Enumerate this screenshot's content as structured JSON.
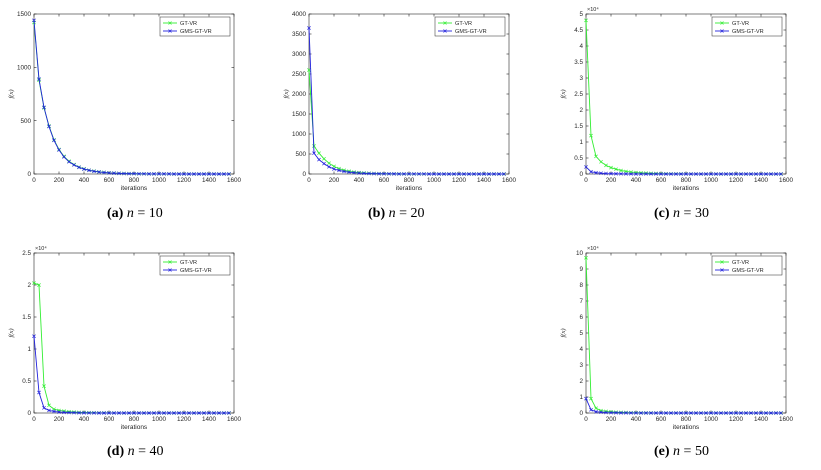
{
  "figure": {
    "captions": [
      {
        "tag": "(a)",
        "var": "n",
        "eq": "=",
        "val": "10"
      },
      {
        "tag": "(b)",
        "var": "n",
        "eq": "=",
        "val": "20"
      },
      {
        "tag": "(c)",
        "var": "n",
        "eq": "=",
        "val": "30"
      },
      {
        "tag": "(d)",
        "var": "n",
        "eq": "=",
        "val": "40"
      },
      {
        "tag": "(e)",
        "var": "n",
        "eq": "=",
        "val": "50"
      }
    ]
  },
  "colors": {
    "gt_vr": "#33ee33",
    "gms_gt_vr": "#2222dd"
  },
  "chart_data": [
    {
      "type": "line",
      "xlabel": "iterations",
      "ylabel": "f(x)",
      "xlim": [
        0,
        1600
      ],
      "ylim": [
        0,
        1500
      ],
      "xticks": [
        "0",
        "200",
        "400",
        "600",
        "800",
        "1000",
        "1200",
        "1400",
        "1600"
      ],
      "yticks": [
        "0",
        "500",
        "1000",
        "1500"
      ],
      "multiplier": "",
      "legend_position": "top-right",
      "x": [
        0,
        40,
        80,
        120,
        160,
        200,
        240,
        280,
        320,
        360,
        400,
        440,
        480,
        520,
        560,
        600,
        640,
        680,
        720,
        760,
        800,
        840,
        880,
        920,
        960,
        1000,
        1040,
        1080,
        1120,
        1160,
        1200,
        1240,
        1280,
        1320,
        1360,
        1400,
        1440,
        1480,
        1520,
        1560
      ],
      "series": [
        {
          "name": "GT-VR",
          "values": [
            1420,
            880,
            620,
            450,
            320,
            230,
            165,
            120,
            88,
            65,
            48,
            36,
            27,
            20,
            15,
            11,
            8,
            6,
            5,
            4,
            3,
            2,
            2,
            1,
            1,
            1,
            1,
            1,
            0,
            0,
            0,
            0,
            0,
            0,
            0,
            0,
            0,
            0,
            0,
            0
          ]
        },
        {
          "name": "GMS-GT-VR",
          "values": [
            1440,
            890,
            625,
            445,
            315,
            225,
            160,
            115,
            85,
            62,
            46,
            34,
            25,
            19,
            14,
            10,
            8,
            6,
            4,
            3,
            3,
            2,
            2,
            1,
            1,
            1,
            1,
            1,
            0,
            0,
            0,
            0,
            0,
            0,
            0,
            0,
            0,
            0,
            0,
            0
          ]
        }
      ]
    },
    {
      "type": "line",
      "xlabel": "iterations",
      "ylabel": "f(x)",
      "xlim": [
        0,
        1600
      ],
      "ylim": [
        0,
        4000
      ],
      "xticks": [
        "0",
        "200",
        "400",
        "600",
        "800",
        "1000",
        "1200",
        "1400",
        "1600"
      ],
      "yticks": [
        "0",
        "500",
        "1000",
        "1500",
        "2000",
        "2500",
        "3000",
        "3500",
        "4000"
      ],
      "multiplier": "",
      "legend_position": "top-right",
      "x": [
        0,
        40,
        80,
        120,
        160,
        200,
        240,
        280,
        320,
        360,
        400,
        440,
        480,
        520,
        560,
        600,
        640,
        680,
        720,
        760,
        800,
        840,
        880,
        920,
        960,
        1000,
        1040,
        1080,
        1120,
        1160,
        1200,
        1240,
        1280,
        1320,
        1360,
        1400,
        1440,
        1480,
        1520,
        1560
      ],
      "series": [
        {
          "name": "GT-VR",
          "values": [
            2600,
            700,
            520,
            380,
            270,
            190,
            135,
            95,
            68,
            48,
            35,
            25,
            18,
            13,
            10,
            7,
            5,
            4,
            3,
            2,
            2,
            1,
            1,
            1,
            1,
            1,
            0,
            0,
            0,
            0,
            0,
            0,
            0,
            0,
            0,
            0,
            0,
            0,
            0,
            0
          ]
        },
        {
          "name": "GMS-GT-VR",
          "values": [
            3650,
            520,
            360,
            260,
            180,
            125,
            90,
            64,
            46,
            33,
            24,
            17,
            12,
            9,
            7,
            5,
            4,
            3,
            2,
            2,
            1,
            1,
            1,
            1,
            0,
            0,
            0,
            0,
            0,
            0,
            0,
            0,
            0,
            0,
            0,
            0,
            0,
            0,
            0,
            0
          ]
        }
      ]
    },
    {
      "type": "line",
      "xlabel": "iterations",
      "ylabel": "f(x)",
      "xlim": [
        0,
        1600
      ],
      "ylim": [
        0,
        5
      ],
      "xticks": [
        "0",
        "200",
        "400",
        "600",
        "800",
        "1000",
        "1200",
        "1400",
        "1600"
      ],
      "yticks": [
        "0",
        "0.5",
        "1",
        "1.5",
        "2",
        "2.5",
        "3",
        "3.5",
        "4",
        "4.5",
        "5"
      ],
      "multiplier": "×10⁴",
      "legend_position": "top-right",
      "x": [
        0,
        40,
        80,
        120,
        160,
        200,
        240,
        280,
        320,
        360,
        400,
        440,
        480,
        520,
        560,
        600,
        640,
        680,
        720,
        760,
        800,
        840,
        880,
        920,
        960,
        1000,
        1040,
        1080,
        1120,
        1160,
        1200,
        1240,
        1280,
        1320,
        1360,
        1400,
        1440,
        1480,
        1520,
        1560
      ],
      "series": [
        {
          "name": "GT-VR",
          "values": [
            4.8,
            1.2,
            0.55,
            0.38,
            0.27,
            0.2,
            0.15,
            0.11,
            0.08,
            0.06,
            0.045,
            0.035,
            0.027,
            0.02,
            0.015,
            0.011,
            0.008,
            0.006,
            0.005,
            0.004,
            0.003,
            0.002,
            0.002,
            0.001,
            0.001,
            0.001,
            0,
            0,
            0,
            0,
            0,
            0,
            0,
            0,
            0,
            0,
            0,
            0,
            0,
            0
          ]
        },
        {
          "name": "GMS-GT-VR",
          "values": [
            0.22,
            0.07,
            0.04,
            0.025,
            0.015,
            0.01,
            0.007,
            0.005,
            0.003,
            0.002,
            0.001,
            0.001,
            0,
            0,
            0,
            0,
            0,
            0,
            0,
            0,
            0,
            0,
            0,
            0,
            0,
            0,
            0,
            0,
            0,
            0,
            0,
            0,
            0,
            0,
            0,
            0,
            0,
            0,
            0,
            0
          ]
        }
      ]
    },
    {
      "type": "line",
      "xlabel": "iterations",
      "ylabel": "f(x)",
      "xlim": [
        0,
        1600
      ],
      "ylim": [
        0,
        2.5
      ],
      "xticks": [
        "0",
        "200",
        "400",
        "600",
        "800",
        "1000",
        "1200",
        "1400",
        "1600"
      ],
      "yticks": [
        "0",
        "0.5",
        "1",
        "1.5",
        "2",
        "2.5"
      ],
      "multiplier": "×10⁴",
      "legend_position": "top-right",
      "x": [
        0,
        40,
        80,
        120,
        160,
        200,
        240,
        280,
        320,
        360,
        400,
        440,
        480,
        520,
        560,
        600,
        640,
        680,
        720,
        760,
        800,
        840,
        880,
        920,
        960,
        1000,
        1040,
        1080,
        1120,
        1160,
        1200,
        1240,
        1280,
        1320,
        1360,
        1400,
        1440,
        1480,
        1520,
        1560
      ],
      "series": [
        {
          "name": "GT-VR",
          "values": [
            2.03,
            2.0,
            0.42,
            0.12,
            0.06,
            0.04,
            0.03,
            0.02,
            0.015,
            0.01,
            0.008,
            0.006,
            0.004,
            0.003,
            0.002,
            0.002,
            0.001,
            0.001,
            0,
            0,
            0,
            0,
            0,
            0,
            0,
            0,
            0,
            0,
            0,
            0,
            0,
            0,
            0,
            0,
            0,
            0,
            0,
            0,
            0,
            0
          ]
        },
        {
          "name": "GMS-GT-VR",
          "values": [
            1.2,
            0.32,
            0.08,
            0.04,
            0.025,
            0.015,
            0.01,
            0.007,
            0.005,
            0.003,
            0.002,
            0.001,
            0.001,
            0,
            0,
            0,
            0,
            0,
            0,
            0,
            0,
            0,
            0,
            0,
            0,
            0,
            0,
            0,
            0,
            0,
            0,
            0,
            0,
            0,
            0,
            0,
            0,
            0,
            0,
            0
          ]
        }
      ]
    },
    {
      "type": "line",
      "xlabel": "iterations",
      "ylabel": "f(x)",
      "xlim": [
        0,
        1600
      ],
      "ylim": [
        0,
        10
      ],
      "xticks": [
        "0",
        "200",
        "400",
        "600",
        "800",
        "1000",
        "1200",
        "1400",
        "1600"
      ],
      "yticks": [
        "0",
        "1",
        "2",
        "3",
        "4",
        "5",
        "6",
        "7",
        "8",
        "9",
        "10"
      ],
      "multiplier": "×10⁴",
      "legend_position": "top-right",
      "x": [
        0,
        40,
        80,
        120,
        160,
        200,
        240,
        280,
        320,
        360,
        400,
        440,
        480,
        520,
        560,
        600,
        640,
        680,
        720,
        760,
        800,
        840,
        880,
        920,
        960,
        1000,
        1040,
        1080,
        1120,
        1160,
        1200,
        1240,
        1280,
        1320,
        1360,
        1400,
        1440,
        1480,
        1520,
        1560
      ],
      "series": [
        {
          "name": "GT-VR",
          "values": [
            9.7,
            0.9,
            0.3,
            0.15,
            0.1,
            0.07,
            0.05,
            0.04,
            0.03,
            0.02,
            0.015,
            0.01,
            0.008,
            0.006,
            0.004,
            0.003,
            0.002,
            0.002,
            0.001,
            0.001,
            0,
            0,
            0,
            0,
            0,
            0,
            0,
            0,
            0,
            0,
            0,
            0,
            0,
            0,
            0,
            0,
            0,
            0,
            0,
            0
          ]
        },
        {
          "name": "GMS-GT-VR",
          "values": [
            0.9,
            0.2,
            0.08,
            0.05,
            0.03,
            0.02,
            0.015,
            0.01,
            0.007,
            0.005,
            0.003,
            0.002,
            0.001,
            0.001,
            0,
            0,
            0,
            0,
            0,
            0,
            0,
            0,
            0,
            0,
            0,
            0,
            0,
            0,
            0,
            0,
            0,
            0,
            0,
            0,
            0,
            0,
            0,
            0,
            0,
            0
          ]
        }
      ]
    }
  ]
}
